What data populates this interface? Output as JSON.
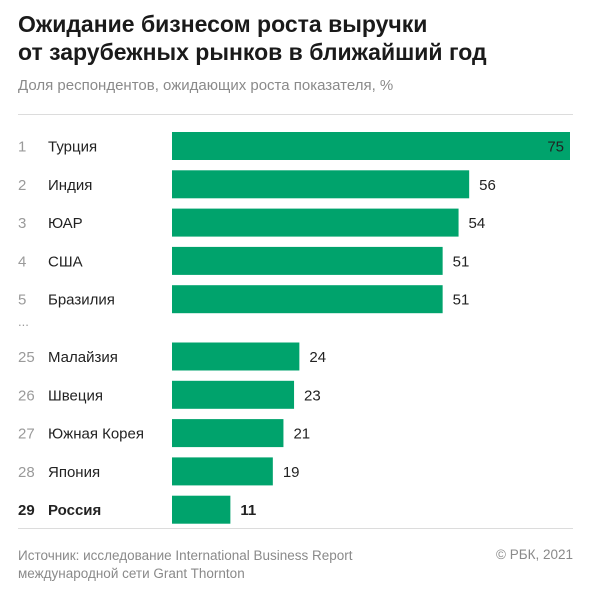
{
  "header": {
    "title_lines": [
      "Ожидание бизнесом роста выручки",
      "от зарубежных рынков в ближайший год"
    ],
    "subtitle": "Доля респондентов, ожидающих роста показателя, %"
  },
  "chart_data": {
    "type": "bar",
    "orientation": "horizontal",
    "title": "Ожидание бизнесом роста выручки от зарубежных рынков в ближайший год",
    "subtitle": "Доля респондентов, ожидающих роста показателя, %",
    "bar_color": "#00a36c",
    "highlight_category": "Россия",
    "gap_marker": "...",
    "gap_after_index": 4,
    "xlim": [
      0,
      75
    ],
    "rows": [
      {
        "rank": "1",
        "category": "Турция",
        "value": 75
      },
      {
        "rank": "2",
        "category": "Индия",
        "value": 56
      },
      {
        "rank": "3",
        "category": "ЮАР",
        "value": 54
      },
      {
        "rank": "4",
        "category": "США",
        "value": 51
      },
      {
        "rank": "5",
        "category": "Бразилия",
        "value": 51
      },
      {
        "rank": "25",
        "category": "Малайзия",
        "value": 24
      },
      {
        "rank": "26",
        "category": "Швеция",
        "value": 23
      },
      {
        "rank": "27",
        "category": "Южная Корея",
        "value": 21
      },
      {
        "rank": "28",
        "category": "Япония",
        "value": 19
      },
      {
        "rank": "29",
        "category": "Россия",
        "value": 11
      }
    ]
  },
  "footer": {
    "source_lines": [
      "Источник: исследование International Business Report",
      "международной сети Grant Thornton"
    ],
    "copyright": "© РБК, 2021"
  }
}
